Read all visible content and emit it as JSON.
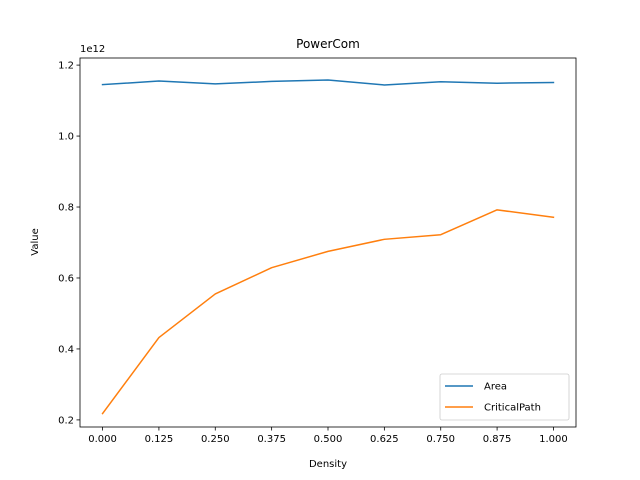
{
  "chart_data": {
    "type": "line",
    "title": "PowerCom",
    "xlabel": "Density",
    "ylabel": "Value",
    "offset_text": "1e12",
    "x": [
      0.0,
      0.125,
      0.25,
      0.375,
      0.5,
      0.625,
      0.75,
      0.875,
      1.0
    ],
    "x_tick_labels": [
      "0.000",
      "0.125",
      "0.250",
      "0.375",
      "0.500",
      "0.625",
      "0.750",
      "0.875",
      "1.000"
    ],
    "y_ticks": [
      0.2,
      0.4,
      0.6,
      0.8,
      1.0,
      1.2
    ],
    "y_tick_labels": [
      "0.2",
      "0.4",
      "0.6",
      "0.8",
      "1.0",
      "1.2"
    ],
    "xlim": [
      -0.05,
      1.05
    ],
    "ylim": [
      0.18,
      1.22
    ],
    "y_scale": 1000000000000.0,
    "grid": false,
    "legend_position": "lower right",
    "series": [
      {
        "name": "Area",
        "color": "#1f77b4",
        "values": [
          1145000000000.0,
          1155000000000.0,
          1147000000000.0,
          1154000000000.0,
          1158000000000.0,
          1144000000000.0,
          1153000000000.0,
          1149000000000.0,
          1151000000000.0
        ]
      },
      {
        "name": "CriticalPath",
        "color": "#ff7f0e",
        "values": [
          218000000000.0,
          432000000000.0,
          555000000000.0,
          629000000000.0,
          675000000000.0,
          709000000000.0,
          722000000000.0,
          792000000000.0,
          771000000000.0
        ]
      }
    ]
  }
}
